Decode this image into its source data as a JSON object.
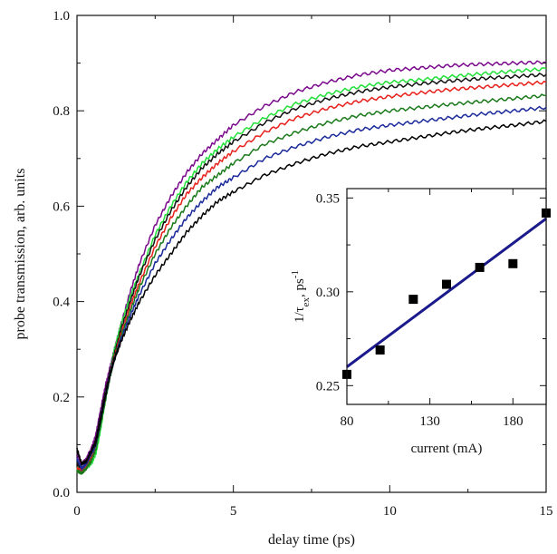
{
  "chart_data": [
    {
      "type": "line",
      "xlabel": "delay time (ps)",
      "ylabel": "probe transmission, arb. units",
      "xlim": [
        0,
        15
      ],
      "ylim": [
        0,
        1.0
      ],
      "xticks": [
        0,
        5,
        10,
        15
      ],
      "yticks": [
        0.0,
        0.2,
        0.4,
        0.6,
        0.8,
        1.0
      ],
      "ytick_labels": [
        "0.0",
        "0.2",
        "0.4",
        "0.6",
        "0.8",
        "1.0"
      ],
      "x_sample": [
        0,
        0.15,
        0.3,
        0.45,
        0.6,
        0.75,
        0.9,
        1.05,
        1.2,
        1.4,
        1.7,
        2.0,
        2.5,
        3.0,
        3.5,
        4.0,
        4.5,
        5.0,
        6.0,
        7.0,
        8.0,
        9.0,
        10.0,
        11.0,
        12.0,
        13.0,
        14.0,
        15.0
      ],
      "series": [
        {
          "color": "#7a0a8c",
          "values": [
            0.08,
            0.06,
            0.07,
            0.09,
            0.12,
            0.17,
            0.22,
            0.26,
            0.3,
            0.35,
            0.42,
            0.48,
            0.56,
            0.62,
            0.67,
            0.71,
            0.74,
            0.77,
            0.81,
            0.84,
            0.86,
            0.875,
            0.885,
            0.89,
            0.895,
            0.898,
            0.9,
            0.902
          ]
        },
        {
          "color": "#22e03a",
          "values": [
            0.05,
            0.05,
            0.055,
            0.06,
            0.08,
            0.13,
            0.19,
            0.25,
            0.3,
            0.35,
            0.41,
            0.46,
            0.54,
            0.6,
            0.65,
            0.69,
            0.72,
            0.745,
            0.785,
            0.815,
            0.835,
            0.85,
            0.86,
            0.865,
            0.872,
            0.878,
            0.883,
            0.888
          ]
        },
        {
          "color": "#111111",
          "values": [
            0.06,
            0.05,
            0.06,
            0.08,
            0.11,
            0.16,
            0.21,
            0.25,
            0.29,
            0.34,
            0.4,
            0.455,
            0.53,
            0.59,
            0.64,
            0.68,
            0.71,
            0.735,
            0.775,
            0.805,
            0.825,
            0.84,
            0.85,
            0.857,
            0.863,
            0.868,
            0.872,
            0.876
          ]
        },
        {
          "color": "#e8201c",
          "values": [
            0.05,
            0.045,
            0.055,
            0.07,
            0.1,
            0.15,
            0.2,
            0.245,
            0.285,
            0.33,
            0.39,
            0.44,
            0.515,
            0.575,
            0.625,
            0.66,
            0.69,
            0.715,
            0.755,
            0.785,
            0.805,
            0.82,
            0.83,
            0.838,
            0.845,
            0.85,
            0.855,
            0.86
          ]
        },
        {
          "color": "#1a7a1a",
          "values": [
            0.045,
            0.04,
            0.05,
            0.065,
            0.09,
            0.14,
            0.19,
            0.24,
            0.28,
            0.325,
            0.38,
            0.43,
            0.5,
            0.555,
            0.6,
            0.64,
            0.665,
            0.69,
            0.73,
            0.755,
            0.775,
            0.79,
            0.8,
            0.807,
            0.814,
            0.82,
            0.826,
            0.832
          ]
        },
        {
          "color": "#1a2a9a",
          "values": [
            0.07,
            0.05,
            0.06,
            0.08,
            0.1,
            0.15,
            0.2,
            0.245,
            0.28,
            0.32,
            0.37,
            0.415,
            0.48,
            0.53,
            0.575,
            0.61,
            0.64,
            0.66,
            0.7,
            0.725,
            0.745,
            0.76,
            0.77,
            0.778,
            0.786,
            0.794,
            0.8,
            0.807
          ]
        },
        {
          "color": "#000000",
          "values": [
            0.09,
            0.06,
            0.065,
            0.085,
            0.105,
            0.15,
            0.2,
            0.245,
            0.28,
            0.315,
            0.36,
            0.4,
            0.455,
            0.5,
            0.545,
            0.58,
            0.61,
            0.63,
            0.665,
            0.69,
            0.71,
            0.725,
            0.735,
            0.745,
            0.755,
            0.763,
            0.77,
            0.778
          ]
        }
      ]
    },
    {
      "type": "scatter",
      "xlabel": "current (mA)",
      "ylabel": "1/τex, ps⁻¹",
      "ylabel_main": "1/",
      "ylabel_tau": "τ",
      "ylabel_sub": "ex",
      "ylabel_unit": ", ps",
      "ylabel_sup": "-1",
      "xlim": [
        80,
        200
      ],
      "ylim": [
        0.24,
        0.355
      ],
      "xticks": [
        80,
        130,
        180
      ],
      "yticks": [
        0.25,
        0.3,
        0.35
      ],
      "ytick_labels": [
        "0.25",
        "0.30",
        "0.35"
      ],
      "points": [
        {
          "x": 80,
          "y": 0.256
        },
        {
          "x": 100,
          "y": 0.269
        },
        {
          "x": 120,
          "y": 0.296
        },
        {
          "x": 140,
          "y": 0.304
        },
        {
          "x": 160,
          "y": 0.313
        },
        {
          "x": 180,
          "y": 0.315
        },
        {
          "x": 200,
          "y": 0.342
        }
      ],
      "fit_line": {
        "x": [
          80,
          200
        ],
        "y": [
          0.26,
          0.339
        ],
        "color": "#1a1a8c"
      }
    }
  ]
}
